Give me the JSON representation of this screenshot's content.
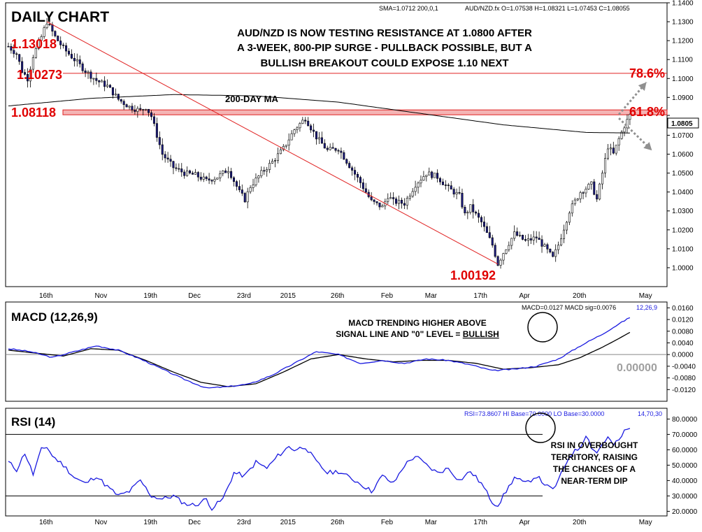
{
  "header": {
    "title": "DAILY CHART",
    "sma_label": "SMA=1.0712  200,0,1",
    "ohlc_label": "AUD/NZD.fx O=1.07538 H=1.08321 L=1.07453 C=1.08055"
  },
  "annotations": {
    "headline": [
      "AUD/NZD IS NOW TESTING RESISTANCE AT 1.0800 AFTER",
      "A 3-WEEK, 800-PIP SURGE - PULLBACK POSSIBLE, BUT A",
      "BULLISH BREAKOUT COULD EXPOSE 1.10 NEXT"
    ],
    "ma_label": "200-DAY MA",
    "fib_786": "78.6%",
    "fib_618": "61.8%",
    "level_high": "1.13018",
    "level_786": "1.10273",
    "level_618": "1.08118",
    "level_low": "1.00192",
    "current_price": "1.0805",
    "macd_note": [
      "MACD TRENDING HIGHER ABOVE",
      "SIGNAL LINE AND \"0\" LEVEL = BULLISH"
    ],
    "macd_note_plain": "SIGNAL LINE AND \"0\" LEVEL = ",
    "macd_note_bold": "BULLISH",
    "rsi_note": [
      "RSI IN OVERBOUGHT",
      "TERRITORY, RAISING",
      "THE CHANCES OF A",
      "NEAR-TERM DIP"
    ]
  },
  "colors": {
    "up_candle": "#ffffff",
    "down_candle": "#1a1a80",
    "resistance": "#e02020",
    "trendline": "#e02020",
    "ma": "#000000",
    "macd": "#1a1ae0",
    "signal": "#000000",
    "rsi": "#1a1ae0",
    "label_red": "#e00000",
    "zero_label": "#a0a0a0"
  },
  "chart_data": [
    {
      "type": "candlestick",
      "title": "DAILY CHART",
      "symbol": "AUD/NZD.fx",
      "x_labels": [
        "16th",
        "Nov",
        "19th",
        "Dec",
        "23rd",
        "2015",
        "26th",
        "Feb",
        "Mar",
        "17th",
        "Apr",
        "20th",
        "May"
      ],
      "ylim": [
        0.99,
        1.14
      ],
      "y_ticks": [
        "1.0000",
        "1.0100",
        "1.0200",
        "1.0300",
        "1.0400",
        "1.0500",
        "1.0600",
        "1.0700",
        "1.0805",
        "1.0900",
        "1.1000",
        "1.1100",
        "1.1200",
        "1.1300",
        "1.1400"
      ],
      "anchors": [
        [
          0,
          1.117
        ],
        [
          3,
          1.113
        ],
        [
          5,
          1.104
        ],
        [
          7,
          1.1
        ],
        [
          9,
          1.112
        ],
        [
          12,
          1.122
        ],
        [
          14,
          1.13
        ],
        [
          17,
          1.122
        ],
        [
          20,
          1.116
        ],
        [
          24,
          1.11
        ],
        [
          28,
          1.104
        ],
        [
          32,
          1.099
        ],
        [
          36,
          1.096
        ],
        [
          40,
          1.089
        ],
        [
          44,
          1.085
        ],
        [
          48,
          1.083
        ],
        [
          50,
          1.085
        ],
        [
          52,
          1.08
        ],
        [
          56,
          1.06
        ],
        [
          60,
          1.053
        ],
        [
          64,
          1.05
        ],
        [
          68,
          1.049
        ],
        [
          72,
          1.046
        ],
        [
          76,
          1.048
        ],
        [
          80,
          1.052
        ],
        [
          84,
          1.04
        ],
        [
          86,
          1.036
        ],
        [
          88,
          1.043
        ],
        [
          92,
          1.05
        ],
        [
          96,
          1.056
        ],
        [
          100,
          1.063
        ],
        [
          104,
          1.073
        ],
        [
          108,
          1.079
        ],
        [
          112,
          1.069
        ],
        [
          116,
          1.062
        ],
        [
          120,
          1.063
        ],
        [
          124,
          1.054
        ],
        [
          128,
          1.045
        ],
        [
          132,
          1.035
        ],
        [
          136,
          1.032
        ],
        [
          138,
          1.038
        ],
        [
          140,
          1.035
        ],
        [
          144,
          1.034
        ],
        [
          148,
          1.044
        ],
        [
          152,
          1.05
        ],
        [
          156,
          1.048
        ],
        [
          160,
          1.042
        ],
        [
          164,
          1.038
        ],
        [
          166,
          1.028
        ],
        [
          168,
          1.032
        ],
        [
          172,
          1.024
        ],
        [
          176,
          1.012
        ],
        [
          178,
          1.002
        ],
        [
          180,
          1.008
        ],
        [
          184,
          1.018
        ],
        [
          188,
          1.014
        ],
        [
          192,
          1.016
        ],
        [
          196,
          1.009
        ],
        [
          198,
          1.005
        ],
        [
          200,
          1.012
        ],
        [
          204,
          1.03
        ],
        [
          208,
          1.04
        ],
        [
          212,
          1.044
        ],
        [
          214,
          1.036
        ],
        [
          216,
          1.05
        ],
        [
          218,
          1.064
        ],
        [
          220,
          1.06
        ],
        [
          222,
          1.068
        ],
        [
          224,
          1.075
        ],
        [
          226,
          1.0805
        ]
      ],
      "ma_200": [
        [
          0,
          1.0855
        ],
        [
          30,
          1.0895
        ],
        [
          60,
          1.0915
        ],
        [
          90,
          1.0908
        ],
        [
          120,
          1.0875
        ],
        [
          150,
          1.0815
        ],
        [
          180,
          1.0755
        ],
        [
          210,
          1.0715
        ],
        [
          226,
          1.0712
        ]
      ],
      "resistance_levels": [
        1.10273,
        1.08118
      ],
      "trendline": [
        [
          14,
          1.13
        ],
        [
          178,
          1.00192
        ]
      ],
      "arrows": [
        {
          "from": [
            222,
            1.081
          ],
          "to": [
            232,
            1.098
          ]
        },
        {
          "from": [
            222,
            1.079
          ],
          "to": [
            234,
            1.062
          ]
        }
      ]
    },
    {
      "type": "line",
      "title": "MACD (12,26,9)",
      "readout": "MACD=0.0127 MACD sig=0.0076",
      "params": "12,26,9",
      "zero_label": "0.00000",
      "ylim": [
        -0.016,
        0.018
      ],
      "y_ticks": [
        "0.0160",
        "0.0120",
        "0.0080",
        "0.0040",
        "0.0000",
        "-0.0040",
        "-0.0080",
        "-0.0120"
      ],
      "series": [
        {
          "name": "MACD",
          "points": [
            [
              0,
              0.002
            ],
            [
              8,
              0.001
            ],
            [
              16,
              -0.001
            ],
            [
              24,
              0.001
            ],
            [
              32,
              0.003
            ],
            [
              40,
              0.0015
            ],
            [
              48,
              -0.0015
            ],
            [
              56,
              -0.005
            ],
            [
              64,
              -0.0085
            ],
            [
              72,
              -0.0115
            ],
            [
              80,
              -0.011
            ],
            [
              88,
              -0.01
            ],
            [
              96,
              -0.007
            ],
            [
              104,
              -0.003
            ],
            [
              112,
              0.001
            ],
            [
              120,
              0.0
            ],
            [
              128,
              -0.003
            ],
            [
              136,
              -0.002
            ],
            [
              144,
              -0.003
            ],
            [
              152,
              -0.0015
            ],
            [
              160,
              -0.002
            ],
            [
              168,
              -0.0035
            ],
            [
              176,
              -0.0055
            ],
            [
              184,
              -0.005
            ],
            [
              192,
              -0.004
            ],
            [
              200,
              -0.0015
            ],
            [
              208,
              0.003
            ],
            [
              216,
              0.007
            ],
            [
              222,
              0.0105
            ],
            [
              226,
              0.0127
            ]
          ]
        },
        {
          "name": "MACD sig",
          "points": [
            [
              0,
              0.0015
            ],
            [
              10,
              0.0005
            ],
            [
              20,
              -0.0005
            ],
            [
              30,
              0.002
            ],
            [
              40,
              0.0015
            ],
            [
              50,
              -0.002
            ],
            [
              60,
              -0.006
            ],
            [
              70,
              -0.0095
            ],
            [
              80,
              -0.011
            ],
            [
              90,
              -0.01
            ],
            [
              100,
              -0.006
            ],
            [
              110,
              -0.0015
            ],
            [
              120,
              0.0
            ],
            [
              130,
              -0.0015
            ],
            [
              140,
              -0.0025
            ],
            [
              150,
              -0.002
            ],
            [
              160,
              -0.002
            ],
            [
              170,
              -0.003
            ],
            [
              180,
              -0.005
            ],
            [
              190,
              -0.0045
            ],
            [
              200,
              -0.0035
            ],
            [
              208,
              -0.001
            ],
            [
              216,
              0.0025
            ],
            [
              222,
              0.0055
            ],
            [
              226,
              0.0076
            ]
          ]
        }
      ]
    },
    {
      "type": "line",
      "title": "RSI (14)",
      "readout": "RSI=73.8607  HI Base=70.0000  LO Base=30.0000",
      "params": "14,70,30",
      "ylim": [
        17,
        87
      ],
      "y_ticks": [
        "80.0000",
        "70.0000",
        "60.0000",
        "50.0000",
        "40.0000",
        "30.0000",
        "20.0000"
      ],
      "levels": [
        70,
        30
      ],
      "series": [
        {
          "name": "RSI",
          "points": [
            [
              0,
              52
            ],
            [
              3,
              47
            ],
            [
              6,
              58
            ],
            [
              9,
              44
            ],
            [
              12,
              60
            ],
            [
              14,
              62
            ],
            [
              16,
              56
            ],
            [
              20,
              50
            ],
            [
              24,
              42
            ],
            [
              28,
              38
            ],
            [
              32,
              43
            ],
            [
              36,
              36
            ],
            [
              40,
              30
            ],
            [
              44,
              33
            ],
            [
              48,
              40
            ],
            [
              52,
              30
            ],
            [
              56,
              28
            ],
            [
              60,
              30
            ],
            [
              64,
              25
            ],
            [
              68,
              24
            ],
            [
              72,
              28
            ],
            [
              74,
              22
            ],
            [
              78,
              28
            ],
            [
              82,
              45
            ],
            [
              86,
              43
            ],
            [
              90,
              52
            ],
            [
              94,
              48
            ],
            [
              98,
              56
            ],
            [
              102,
              62
            ],
            [
              104,
              60
            ],
            [
              108,
              62
            ],
            [
              112,
              52
            ],
            [
              116,
              45
            ],
            [
              120,
              46
            ],
            [
              124,
              42
            ],
            [
              128,
              38
            ],
            [
              132,
              33
            ],
            [
              136,
              43
            ],
            [
              140,
              38
            ],
            [
              144,
              50
            ],
            [
              148,
              56
            ],
            [
              152,
              50
            ],
            [
              156,
              45
            ],
            [
              160,
              48
            ],
            [
              164,
              40
            ],
            [
              168,
              46
            ],
            [
              172,
              38
            ],
            [
              176,
              26
            ],
            [
              178,
              24
            ],
            [
              180,
              30
            ],
            [
              184,
              42
            ],
            [
              188,
              38
            ],
            [
              192,
              43
            ],
            [
              196,
              36
            ],
            [
              198,
              34
            ],
            [
              200,
              40
            ],
            [
              204,
              56
            ],
            [
              208,
              62
            ],
            [
              210,
              70
            ],
            [
              212,
              62
            ],
            [
              214,
              58
            ],
            [
              216,
              64
            ],
            [
              218,
              68
            ],
            [
              220,
              63
            ],
            [
              222,
              66
            ],
            [
              224,
              72
            ],
            [
              226,
              73.86
            ]
          ]
        }
      ]
    }
  ]
}
